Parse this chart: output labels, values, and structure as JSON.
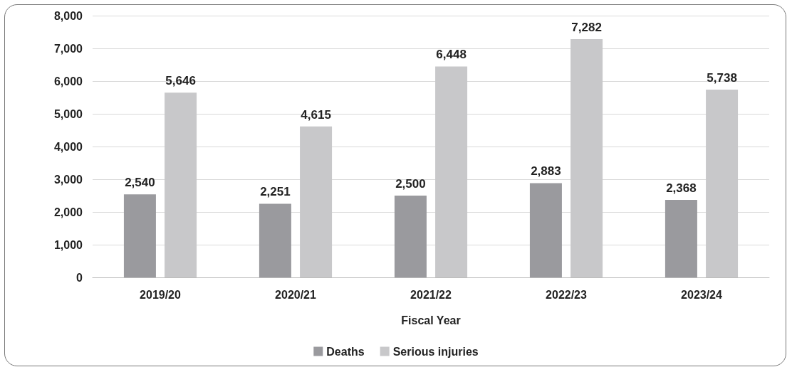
{
  "chart_data": {
    "type": "bar",
    "xlabel": "Fiscal Year",
    "categories": [
      "2019/20",
      "2020/21",
      "2021/22",
      "2022/23",
      "2023/24"
    ],
    "series": [
      {
        "name": "Deaths",
        "color": "#9a9a9e",
        "values": [
          2540,
          2251,
          2500,
          2883,
          2368
        ],
        "value_labels": [
          "2,540",
          "2,251",
          "2,500",
          "2,883",
          "2,368"
        ]
      },
      {
        "name": "Serious injuries",
        "color": "#c8c8ca",
        "values": [
          5646,
          4615,
          6448,
          7282,
          5738
        ],
        "value_labels": [
          "5,646",
          "4,615",
          "6,448",
          "7,282",
          "5,738"
        ]
      }
    ],
    "ylim": [
      0,
      8000
    ],
    "yticks": [
      0,
      {
        "value": 1000,
        "label": "1,000"
      },
      {
        "value": 2000,
        "label": "2,000"
      },
      {
        "value": 3000,
        "label": "3,000"
      },
      {
        "value": 4000,
        "label": "4,000"
      },
      {
        "value": 5000,
        "label": "5,000"
      },
      {
        "value": 6000,
        "label": "6,000"
      },
      {
        "value": 7000,
        "label": "7,000"
      },
      {
        "value": 8000,
        "label": "8,000"
      }
    ],
    "grid": "y",
    "legend": "bottom"
  }
}
